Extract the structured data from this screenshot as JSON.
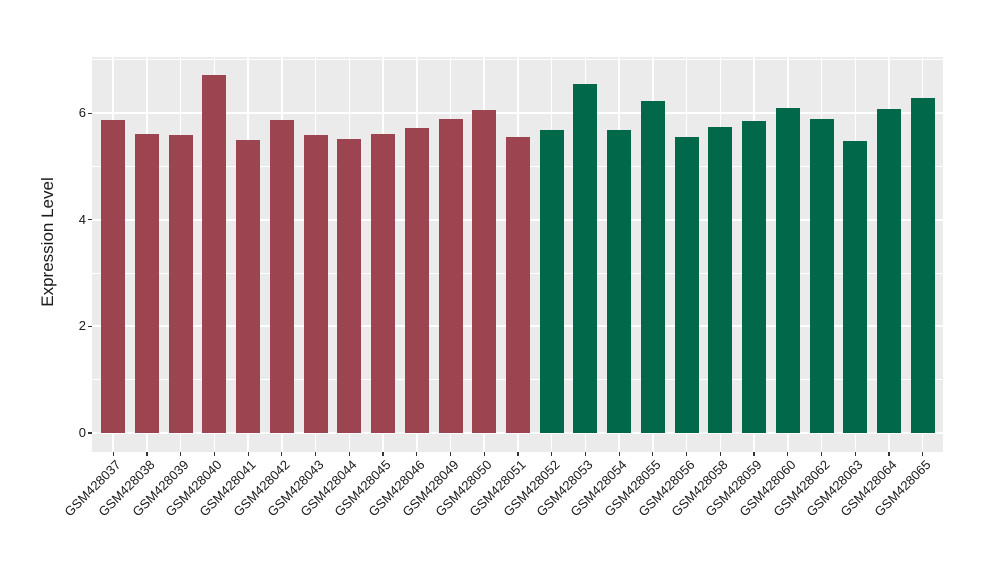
{
  "chart_data": {
    "type": "bar",
    "ylabel": "Expression Level",
    "xlabel": "",
    "categories": [
      "GSM428037",
      "GSM428038",
      "GSM428039",
      "GSM428040",
      "GSM428041",
      "GSM428042",
      "GSM428043",
      "GSM428044",
      "GSM428045",
      "GSM428046",
      "GSM428049",
      "GSM428050",
      "GSM428051",
      "GSM428052",
      "GSM428053",
      "GSM428054",
      "GSM428055",
      "GSM428056",
      "GSM428058",
      "GSM428059",
      "GSM428060",
      "GSM428062",
      "GSM428063",
      "GSM428064",
      "GSM428065"
    ],
    "values": [
      5.87,
      5.61,
      5.6,
      6.72,
      5.5,
      5.87,
      5.59,
      5.52,
      5.61,
      5.72,
      5.9,
      6.06,
      5.55,
      5.68,
      6.54,
      5.68,
      6.23,
      5.55,
      5.74,
      5.85,
      6.1,
      5.9,
      5.47,
      6.08,
      6.29
    ],
    "groups": [
      1,
      1,
      1,
      1,
      1,
      1,
      1,
      1,
      1,
      1,
      1,
      1,
      1,
      2,
      2,
      2,
      2,
      2,
      2,
      2,
      2,
      2,
      2,
      2,
      2
    ],
    "group_colors": [
      "#9C4450",
      "#016949"
    ],
    "yticks": [
      0,
      2,
      4,
      6
    ],
    "yticks_minor": [
      1,
      3,
      5,
      7
    ],
    "ylim": [
      -0.35,
      7.05
    ],
    "grid": true,
    "legend": false,
    "colors": {
      "panel_bg": "#EBEBEB",
      "grid": "#FFFFFF",
      "tick": "#333333",
      "text": "#1A1A1A"
    }
  }
}
